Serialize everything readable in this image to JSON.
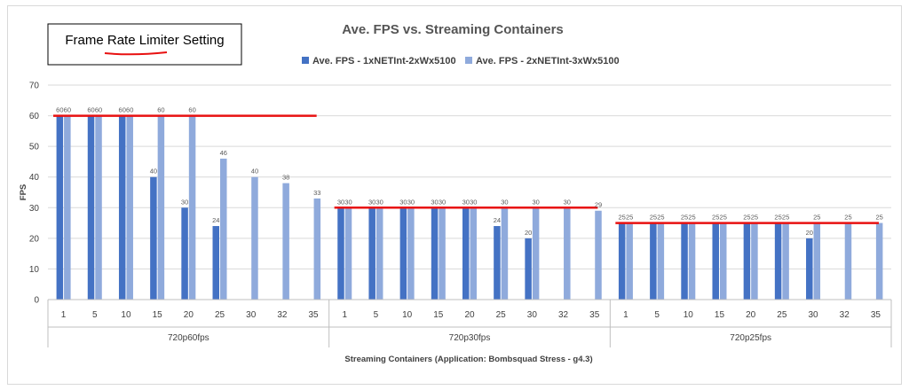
{
  "annotation": {
    "text": "Frame Rate Limiter Setting"
  },
  "chart_data": {
    "type": "bar",
    "title": "Ave. FPS vs. Streaming Containers",
    "xlabel": "Streaming Containers (Application: Bombsquad Stress - g4.3)",
    "ylabel": "FPS",
    "ylim": [
      0,
      70
    ],
    "yticks": [
      0,
      10,
      20,
      30,
      40,
      50,
      60,
      70
    ],
    "grid": true,
    "legend_placement": "top",
    "colors": {
      "series1": "#4472c4",
      "series2": "#8faadc",
      "limit_line": "#e81010"
    },
    "groups": [
      {
        "name": "720p60fps",
        "categories": [
          "1",
          "5",
          "10",
          "15",
          "20",
          "25",
          "30",
          "32",
          "35"
        ],
        "limit": 60,
        "series": [
          {
            "name": "Ave. FPS - 1xNETInt-2xWx5100",
            "values": [
              60,
              60,
              60,
              40,
              30,
              24,
              null,
              null,
              null
            ]
          },
          {
            "name": "Ave. FPS - 2xNETInt-3xWx5100",
            "values": [
              60,
              60,
              60,
              60,
              60,
              46,
              40,
              38,
              33
            ]
          }
        ]
      },
      {
        "name": "720p30fps",
        "categories": [
          "1",
          "5",
          "10",
          "15",
          "20",
          "25",
          "30",
          "32",
          "35"
        ],
        "limit": 30,
        "series": [
          {
            "name": "Ave. FPS - 1xNETInt-2xWx5100",
            "values": [
              30,
              30,
              30,
              30,
              30,
              24,
              20,
              null,
              null
            ]
          },
          {
            "name": "Ave. FPS - 2xNETInt-3xWx5100",
            "values": [
              30,
              30,
              30,
              30,
              30,
              30,
              30,
              30,
              29
            ]
          }
        ]
      },
      {
        "name": "720p25fps",
        "categories": [
          "1",
          "5",
          "10",
          "15",
          "20",
          "25",
          "30",
          "32",
          "35"
        ],
        "limit": 25,
        "series": [
          {
            "name": "Ave. FPS - 1xNETInt-2xWx5100",
            "values": [
              25,
              25,
              25,
              25,
              25,
              25,
              20,
              null,
              null
            ]
          },
          {
            "name": "Ave. FPS - 2xNETInt-3xWx5100",
            "values": [
              25,
              25,
              25,
              25,
              25,
              25,
              25,
              25,
              25
            ]
          }
        ]
      }
    ]
  }
}
